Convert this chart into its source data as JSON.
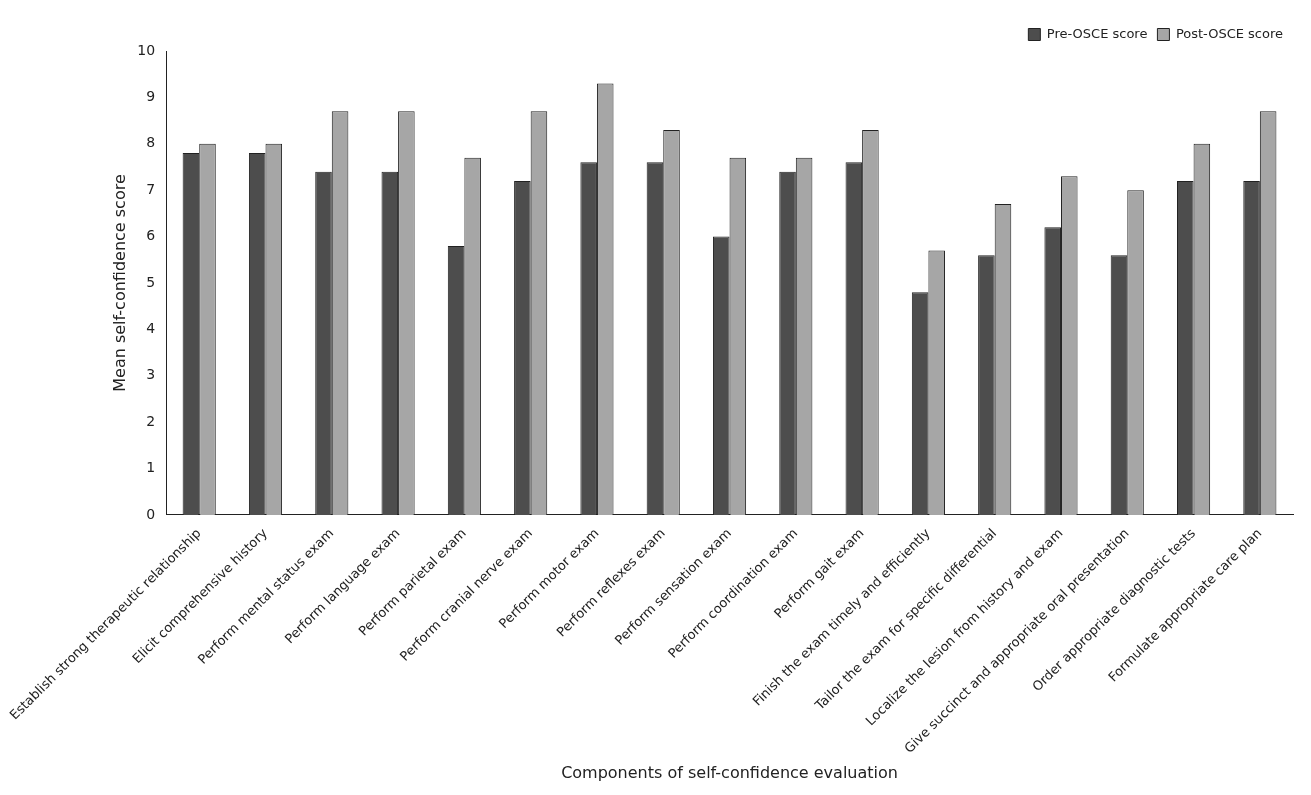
{
  "chart_data": {
    "type": "bar",
    "xlabel": "Components of self-confidence evaluation",
    "ylabel": "Mean self-confidence score",
    "categories": [
      "Establish strong therapeutic relationship",
      "Elicit comprehensive history",
      "Perform mental status exam",
      "Perform language exam",
      "Perform parietal exam",
      "Perform cranial nerve exam",
      "Perform motor exam",
      "Perform reflexes exam",
      "Perform sensation exam",
      "Perform coordination exam",
      "Perform gait exam",
      "Finish the exam timely and efficiently",
      "Tailor the exam for specific differential",
      "Localize the lesion from history and exam",
      "Give succinct and appropriate oral presentation",
      "Order appropriate diagnostic tests",
      "Formulate appropriate care plan"
    ],
    "series": [
      {
        "name": "Pre-OSCE score",
        "color": "#4d4d4d",
        "values": [
          7.8,
          7.8,
          7.4,
          7.4,
          5.8,
          7.2,
          7.6,
          7.6,
          6.0,
          7.4,
          7.6,
          4.8,
          5.6,
          6.2,
          5.6,
          7.2,
          7.2
        ]
      },
      {
        "name": "Post-OSCE score",
        "color": "#a6a6a6",
        "values": [
          8.0,
          8.0,
          8.7,
          8.7,
          7.7,
          8.7,
          9.3,
          8.3,
          7.7,
          7.7,
          8.3,
          5.7,
          6.7,
          7.3,
          7.0,
          8.0,
          8.7
        ]
      }
    ],
    "ylim": [
      0,
      10
    ],
    "yticks": [
      0,
      1,
      2,
      3,
      4,
      5,
      6,
      7,
      8,
      9,
      10
    ],
    "grid": false,
    "legend": "top right"
  }
}
